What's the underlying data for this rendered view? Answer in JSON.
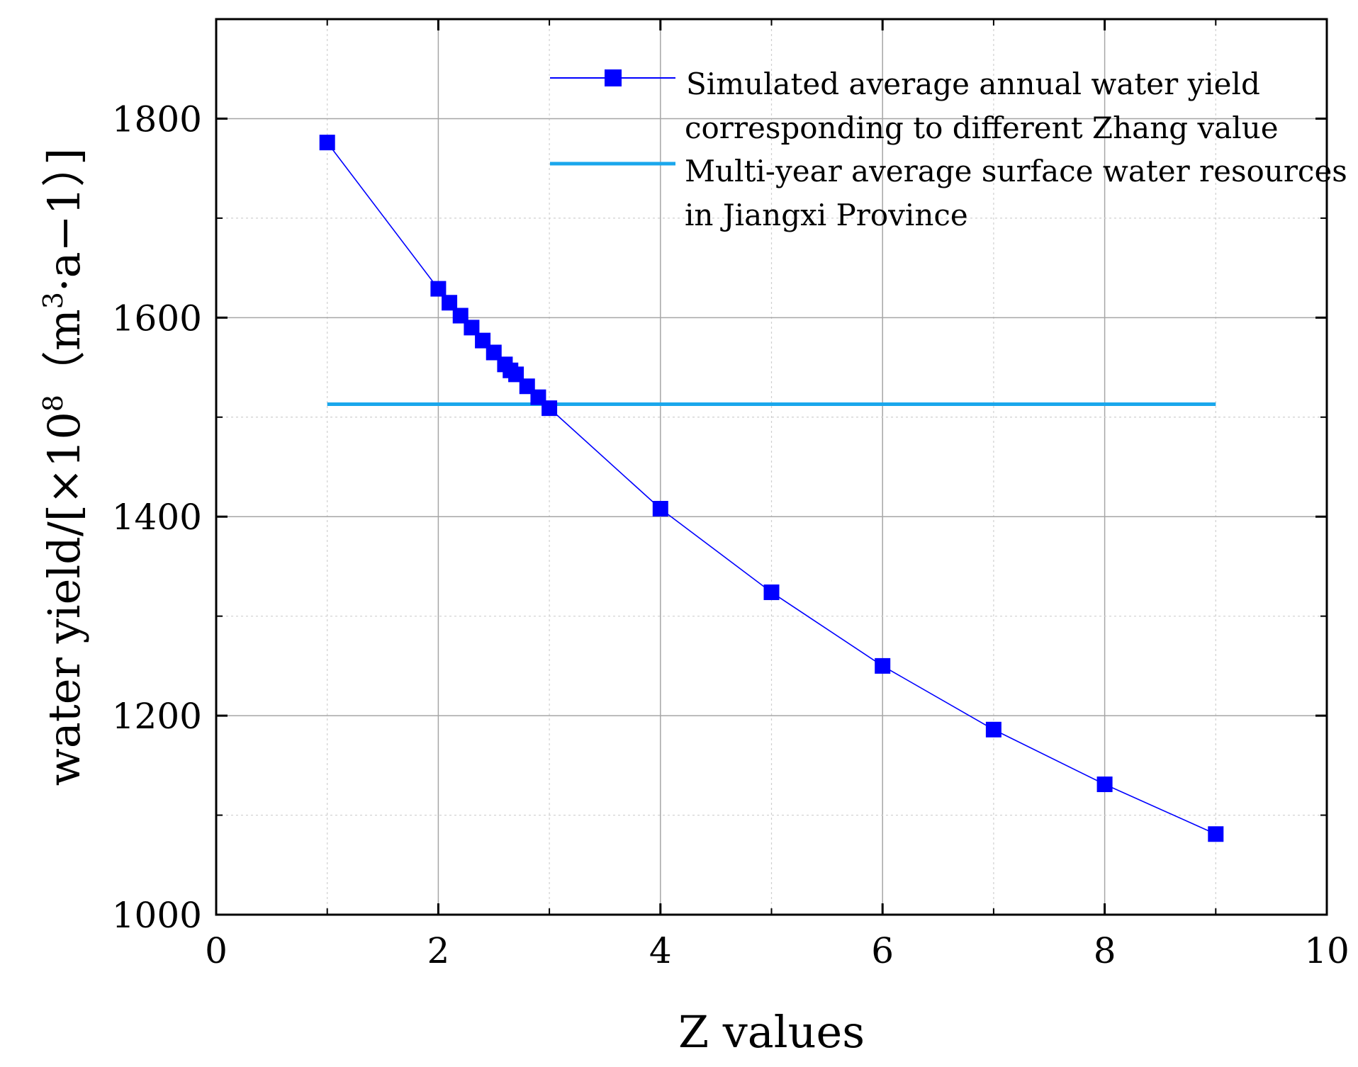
{
  "chart_data": {
    "type": "line",
    "title": "",
    "xlabel": "Z values",
    "ylabel": {
      "base": "water yield/[×10",
      "exp": "8",
      "mid": "（m",
      "exp2": "3",
      "end": "·a−1）]"
    },
    "xlim": [
      0,
      10
    ],
    "ylim": [
      1000,
      1900
    ],
    "xticks": [
      0,
      2,
      4,
      6,
      8,
      10
    ],
    "xtick_labels": [
      "0",
      "2",
      "4",
      "6",
      "8",
      "10"
    ],
    "yticks": [
      1000,
      1200,
      1400,
      1600,
      1800
    ],
    "ytick_labels": [
      "1000",
      "1200",
      "1400",
      "1600",
      "1800"
    ],
    "grid": true,
    "legend_position": "top-right",
    "series": [
      {
        "name": "Simulated average annual water yield corresponding to different Zhang value",
        "legend_lines": [
          "Simulated average annual water yield",
          "corresponding to different Zhang value"
        ],
        "color": "#0000ff",
        "marker": "square",
        "x": [
          1,
          2,
          2.1,
          2.2,
          2.3,
          2.4,
          2.5,
          2.6,
          2.65,
          2.7,
          2.8,
          2.9,
          3,
          4,
          5,
          6,
          7,
          8,
          9
        ],
        "y": [
          1776,
          1629,
          1615,
          1602,
          1590,
          1577,
          1565,
          1553,
          1547,
          1543,
          1531,
          1520,
          1509,
          1408,
          1324,
          1250,
          1186,
          1131,
          1081
        ]
      },
      {
        "name": "Multi-year average surface water resources in Jiangxi Province",
        "legend_lines": [
          "Multi-year average surface water resources",
          "in Jiangxi Province"
        ],
        "color": "#1aa7ec",
        "marker": "none",
        "x": [
          1,
          9
        ],
        "y": [
          1513,
          1513
        ]
      }
    ]
  }
}
